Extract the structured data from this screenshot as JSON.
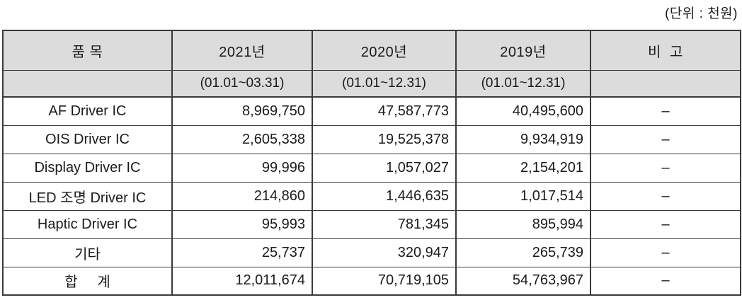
{
  "unit_label": "(단위 : 천원)",
  "table": {
    "columns": [
      {
        "label": "품 목",
        "period": ""
      },
      {
        "label": "2021년",
        "period": "(01.01~03.31)"
      },
      {
        "label": "2020년",
        "period": "(01.01~12.31)"
      },
      {
        "label": "2019년",
        "period": "(01.01~12.31)"
      },
      {
        "label": "비  고",
        "period": ""
      }
    ],
    "rows": [
      {
        "item": "AF Driver IC",
        "y2021": "8,969,750",
        "y2020": "47,587,773",
        "y2019": "40,495,600",
        "note": "–"
      },
      {
        "item": "OIS Driver IC",
        "y2021": "2,605,338",
        "y2020": "19,525,378",
        "y2019": "9,934,919",
        "note": "–"
      },
      {
        "item": "Display Driver IC",
        "y2021": "99,996",
        "y2020": "1,057,027",
        "y2019": "2,154,201",
        "note": "–"
      },
      {
        "item": "LED 조명 Driver IC",
        "y2021": "214,860",
        "y2020": "1,446,635",
        "y2019": "1,017,514",
        "note": "–"
      },
      {
        "item": "Haptic Driver IC",
        "y2021": "95,993",
        "y2020": "781,345",
        "y2019": "895,994",
        "note": "–"
      },
      {
        "item": "기타",
        "y2021": "25,737",
        "y2020": "320,947",
        "y2019": "265,739",
        "note": "–"
      },
      {
        "item": "합     계",
        "y2021": "12,011,674",
        "y2020": "70,719,105",
        "y2019": "54,763,967",
        "note": "–"
      }
    ]
  },
  "colors": {
    "header_bg": "#dcdcdc",
    "border": "#3a3a3a",
    "text": "#1a1a1a"
  }
}
